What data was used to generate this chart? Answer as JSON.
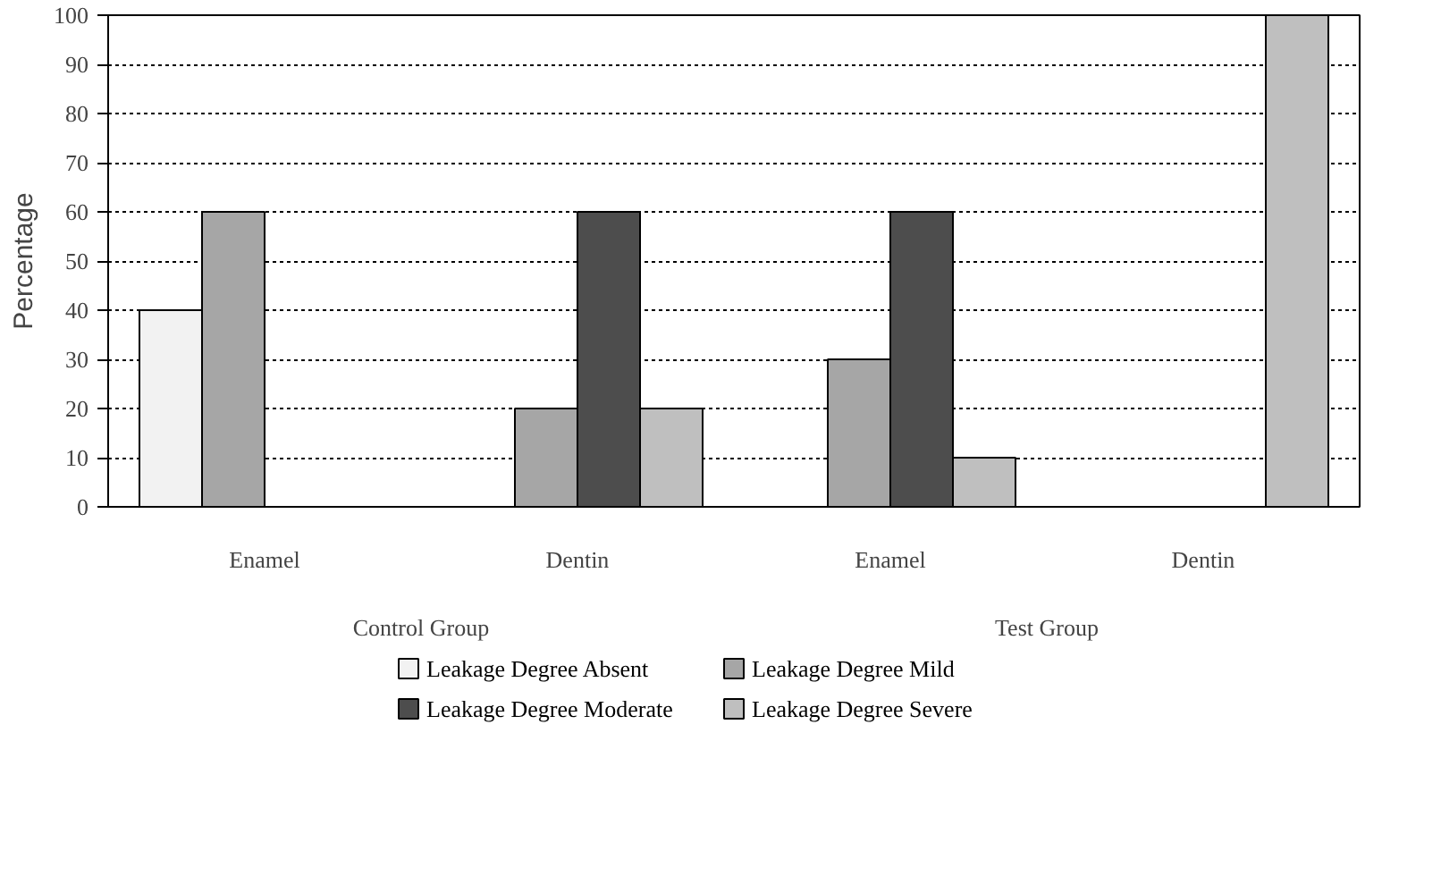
{
  "chart_data": {
    "type": "bar",
    "ylabel": "Percentage",
    "categories": [
      "Enamel",
      "Dentin",
      "Enamel",
      "Dentin"
    ],
    "annotations": [
      "Control Group",
      "Test Group"
    ],
    "series": [
      {
        "name": "Leakage Degree Absent",
        "color": "#f2f2f2",
        "values": [
          40,
          null,
          null,
          null
        ]
      },
      {
        "name": "Leakage Degree Mild",
        "color": "#a6a6a6",
        "values": [
          60,
          20,
          30,
          null
        ]
      },
      {
        "name": "Leakage Degree Moderate",
        "color": "#4d4d4d",
        "values": [
          null,
          60,
          60,
          null
        ]
      },
      {
        "name": "Leakage Degree Severe",
        "color": "#bfbfbf",
        "values": [
          null,
          20,
          10,
          100
        ]
      }
    ],
    "ylim": [
      0,
      100
    ],
    "yticks": [
      0,
      10,
      20,
      30,
      40,
      50,
      60,
      70,
      80,
      90,
      100
    ],
    "grid": "y",
    "legend": "bottom"
  }
}
